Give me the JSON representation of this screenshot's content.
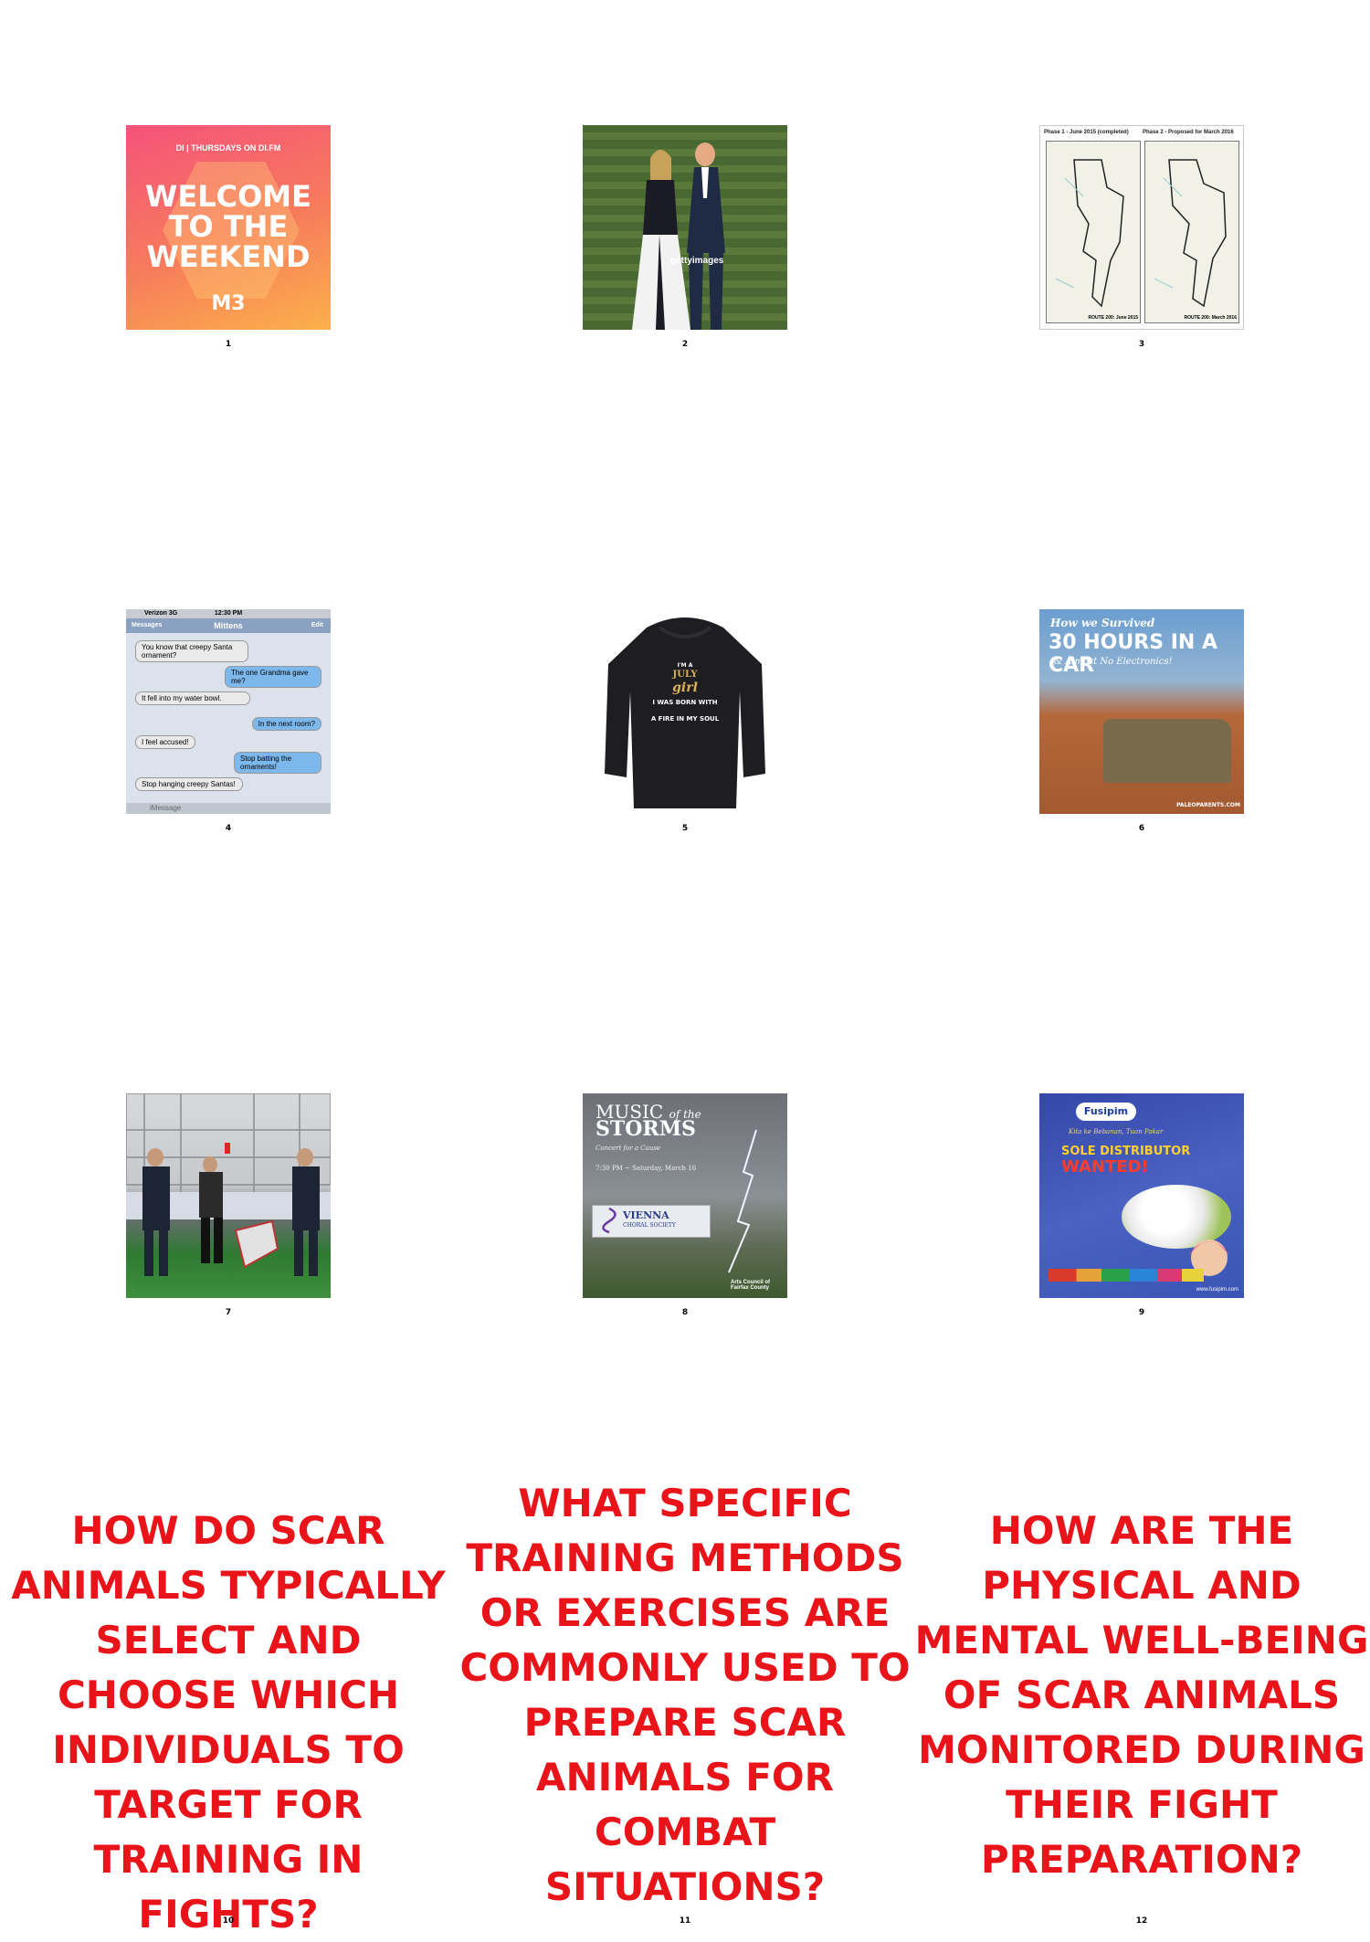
{
  "items": [
    {
      "num": "1",
      "header": "DI | THURSDAYS ON DI.FM",
      "big": "WELCOME TO THE WEEKEND",
      "logo": "M3"
    },
    {
      "num": "2",
      "watermark": "gettyimages"
    },
    {
      "num": "3",
      "left_title": "Phase 1 - June 2015 (completed)",
      "right_title": "Phase 2 - Proposed for March 2016",
      "left_footer": "ROUTE 200: June 2015",
      "right_footer": "ROUTE 200: March 2016"
    },
    {
      "num": "4",
      "carrier": "Verizon  3G",
      "time": "12:30 PM",
      "back": "Messages",
      "contact": "Mittens",
      "edit": "Edit",
      "messages": [
        {
          "side": "left",
          "text": "You know that creepy Santa ornament?"
        },
        {
          "side": "right",
          "text": "The one Grandma gave me?"
        },
        {
          "side": "left",
          "text": "It fell into my water bowl."
        },
        {
          "side": "right",
          "text": "In the next room?"
        },
        {
          "side": "left",
          "text": "I feel accused!"
        },
        {
          "side": "right",
          "text": "Stop batting the ornaments!"
        },
        {
          "side": "left",
          "text": "Stop hanging creepy Santas!"
        }
      ],
      "input_placeholder": "iMessage"
    },
    {
      "num": "5",
      "shirt_lines": [
        "I'M A",
        "JULY",
        "girl",
        "I WAS BORN WITH",
        "A FIRE IN MY SOUL"
      ]
    },
    {
      "num": "6",
      "line1": "How we Survived",
      "line2": "30 HOURS IN A CAR",
      "line3": "& Almost No Electronics!",
      "footer": "PALEOPARENTS.COM"
    },
    {
      "num": "7"
    },
    {
      "num": "8",
      "title_a": "MUSIC",
      "title_of": "of the",
      "title_b": "STORMS",
      "subtitle": "Concert for a Cause",
      "date": "7:30 PM ~ Saturday, March 16",
      "org": "VIENNA",
      "org2": "CHORAL SOCIETY",
      "sponsor": "Arts Council of Fairfax County"
    },
    {
      "num": "9",
      "brand": "Fusipim",
      "tagline": "Kita ke Bebanan, Tuan Pakar",
      "sole": "SOLE DISTRIBUTOR",
      "wanted": "WANTED!",
      "url": "www.fusipim.com"
    }
  ],
  "questions": [
    {
      "num": "10",
      "text": "HOW DO SCAR ANIMALS TYPICALLY SELECT AND CHOOSE WHICH INDIVIDUALS TO TARGET FOR TRAINING IN FIGHTS?"
    },
    {
      "num": "11",
      "text": "WHAT SPECIFIC TRAINING METHODS OR EXERCISES ARE COMMONLY USED TO PREPARE SCAR ANIMALS FOR COMBAT SITUATIONS?"
    },
    {
      "num": "12",
      "text": "HOW ARE THE PHYSICAL AND MENTAL WELL-BEING OF SCAR ANIMALS MONITORED DURING THEIR FIGHT PREPARATION?"
    }
  ],
  "colors": {
    "question_red": "#e8141a"
  }
}
